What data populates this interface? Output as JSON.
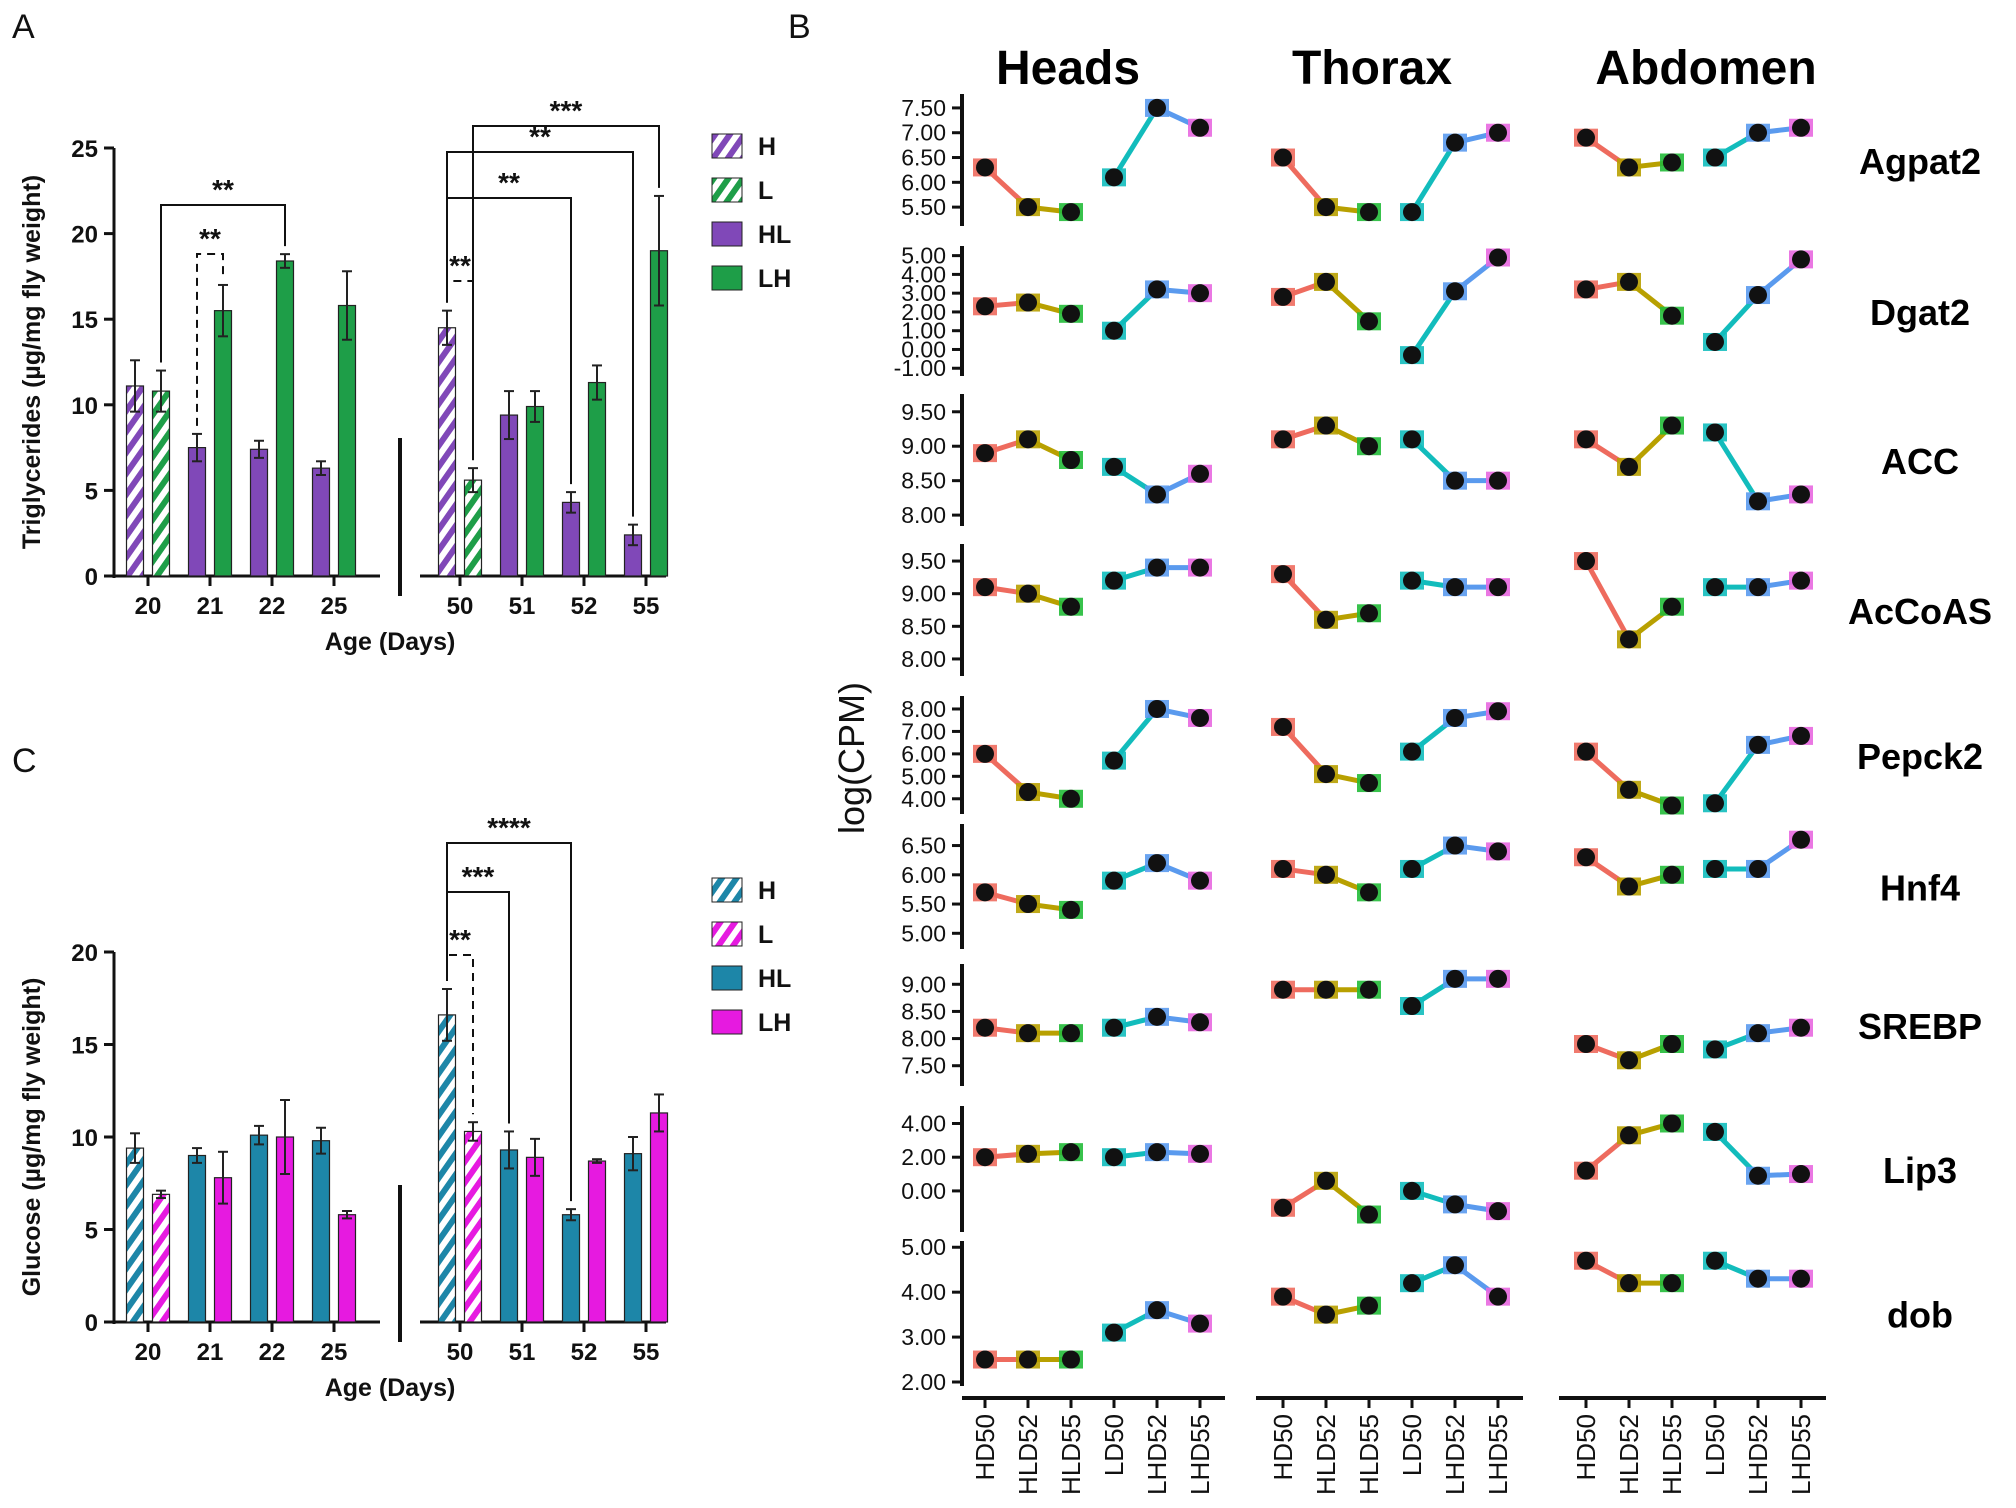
{
  "panels": {
    "A": "A",
    "B": "B",
    "C": "C"
  },
  "colors": {
    "purple": "#8048B8",
    "green": "#1E9E48",
    "teal": "#1D86A8",
    "magenta": "#E61AE0",
    "red": "#EE6B5E",
    "olive": "#B8A000",
    "lgreen": "#22BB38",
    "cyan": "#12BCBC",
    "blue": "#5A9AEE",
    "pink": "#E868E0"
  },
  "chart_data": [
    {
      "type": "bar",
      "panel": "A",
      "ylabel": "Triglycerides (µg/mg fly weight)",
      "xlabel": "Age (Days)",
      "ylim": [
        0,
        25
      ],
      "yticks": [
        "0",
        "5",
        "10",
        "15",
        "20",
        "25"
      ],
      "categories": [
        "20",
        "21",
        "22",
        "25",
        "50",
        "51",
        "52",
        "55"
      ],
      "legend": [
        "H",
        "L",
        "HL",
        "LH"
      ],
      "bars": [
        {
          "cat": "20",
          "series": "H",
          "value": 11.1,
          "err": 1.5
        },
        {
          "cat": "20",
          "series": "L",
          "value": 10.8,
          "err": 1.2
        },
        {
          "cat": "21",
          "series": "HL",
          "value": 7.5,
          "err": 0.8
        },
        {
          "cat": "21",
          "series": "LH",
          "value": 15.5,
          "err": 1.5
        },
        {
          "cat": "22",
          "series": "HL",
          "value": 7.4,
          "err": 0.5
        },
        {
          "cat": "22",
          "series": "LH",
          "value": 18.4,
          "err": 0.4
        },
        {
          "cat": "25",
          "series": "HL",
          "value": 6.3,
          "err": 0.4
        },
        {
          "cat": "25",
          "series": "LH",
          "value": 15.8,
          "err": 2.0
        },
        {
          "cat": "50",
          "series": "H",
          "value": 14.5,
          "err": 1.0
        },
        {
          "cat": "50",
          "series": "L",
          "value": 5.6,
          "err": 0.7
        },
        {
          "cat": "51",
          "series": "HL",
          "value": 9.4,
          "err": 1.4
        },
        {
          "cat": "51",
          "series": "LH",
          "value": 9.9,
          "err": 0.9
        },
        {
          "cat": "52",
          "series": "HL",
          "value": 4.3,
          "err": 0.6
        },
        {
          "cat": "52",
          "series": "LH",
          "value": 11.3,
          "err": 1.0
        },
        {
          "cat": "55",
          "series": "HL",
          "value": 2.4,
          "err": 0.6
        },
        {
          "cat": "55",
          "series": "LH",
          "value": 19.0,
          "err": 3.2
        }
      ],
      "brackets": [
        {
          "from": "20-L",
          "to": "22-LH",
          "label": "**",
          "dashed": false
        },
        {
          "from": "21-HL",
          "to": "21-LH",
          "label": "**",
          "dashed": true
        },
        {
          "from": "50-H",
          "to": "50-L",
          "label": "**",
          "dashed": true
        },
        {
          "from": "50-H",
          "to": "52-HL",
          "label": "**",
          "dashed": false
        },
        {
          "from": "50-H",
          "to": "55-HL",
          "label": "**",
          "dashed": false
        },
        {
          "from": "50-L",
          "to": "55-LH",
          "label": "***",
          "dashed": false
        }
      ]
    },
    {
      "type": "bar",
      "panel": "C",
      "ylabel": "Glucose (µg/mg fly weight)",
      "xlabel": "Age (Days)",
      "ylim": [
        0,
        20
      ],
      "yticks": [
        "0",
        "5",
        "10",
        "15",
        "20"
      ],
      "categories": [
        "20",
        "21",
        "22",
        "25",
        "50",
        "51",
        "52",
        "55"
      ],
      "legend": [
        "H",
        "L",
        "HL",
        "LH"
      ],
      "bars": [
        {
          "cat": "20",
          "series": "H",
          "value": 9.4,
          "err": 0.8
        },
        {
          "cat": "20",
          "series": "L",
          "value": 6.9,
          "err": 0.2
        },
        {
          "cat": "21",
          "series": "HL",
          "value": 9.0,
          "err": 0.4
        },
        {
          "cat": "21",
          "series": "LH",
          "value": 7.8,
          "err": 1.4
        },
        {
          "cat": "22",
          "series": "HL",
          "value": 10.1,
          "err": 0.5
        },
        {
          "cat": "22",
          "series": "LH",
          "value": 10.0,
          "err": 2.0
        },
        {
          "cat": "25",
          "series": "HL",
          "value": 9.8,
          "err": 0.7
        },
        {
          "cat": "25",
          "series": "LH",
          "value": 5.8,
          "err": 0.2
        },
        {
          "cat": "50",
          "series": "H",
          "value": 16.6,
          "err": 1.4
        },
        {
          "cat": "50",
          "series": "L",
          "value": 10.3,
          "err": 0.5
        },
        {
          "cat": "51",
          "series": "HL",
          "value": 9.3,
          "err": 1.0
        },
        {
          "cat": "51",
          "series": "LH",
          "value": 8.9,
          "err": 1.0
        },
        {
          "cat": "52",
          "series": "HL",
          "value": 5.8,
          "err": 0.3
        },
        {
          "cat": "52",
          "series": "LH",
          "value": 8.7,
          "err": 0.1
        },
        {
          "cat": "55",
          "series": "HL",
          "value": 9.1,
          "err": 0.9
        },
        {
          "cat": "55",
          "series": "LH",
          "value": 11.3,
          "err": 1.0
        }
      ],
      "brackets": [
        {
          "from": "50-H",
          "to": "50-L",
          "label": "**",
          "dashed": true
        },
        {
          "from": "50-H",
          "to": "51-HL",
          "label": "***",
          "dashed": false
        },
        {
          "from": "50-H",
          "to": "52-HL",
          "label": "****",
          "dashed": false
        }
      ]
    },
    {
      "type": "line",
      "panel": "B",
      "ylabel": "log(CPM)",
      "columns": [
        "Heads",
        "Thorax",
        "Abdomen"
      ],
      "x": [
        "HD50",
        "HLD52",
        "HLD55",
        "LD50",
        "LHD52",
        "LHD55"
      ],
      "rows": [
        {
          "gene": "Agpat2",
          "yticks": [
            "5.50",
            "6.00",
            "6.50",
            "7.00",
            "7.50"
          ],
          "ylim": [
            5.2,
            7.7
          ],
          "Heads": [
            6.3,
            5.5,
            5.4,
            6.1,
            7.5,
            7.1
          ],
          "Thorax": [
            6.5,
            5.5,
            5.4,
            5.4,
            6.8,
            7.0
          ],
          "Abdomen": [
            6.9,
            6.3,
            6.4,
            6.5,
            7.0,
            7.1
          ]
        },
        {
          "gene": "Dgat2",
          "yticks": [
            "-1.00",
            "0.00",
            "1.00",
            "2.00",
            "3.00",
            "4.00",
            "5.00"
          ],
          "ylim": [
            -1.2,
            5.3
          ],
          "Heads": [
            2.3,
            2.5,
            1.9,
            1.0,
            3.2,
            3.0
          ],
          "Thorax": [
            2.8,
            3.6,
            1.5,
            -0.3,
            3.1,
            4.9
          ],
          "Abdomen": [
            3.2,
            3.6,
            1.8,
            0.4,
            2.9,
            4.8
          ]
        },
        {
          "gene": "ACC",
          "yticks": [
            "8.00",
            "8.50",
            "9.00",
            "9.50"
          ],
          "ylim": [
            7.9,
            9.7
          ],
          "Heads": [
            8.9,
            9.1,
            8.8,
            8.7,
            8.3,
            8.6
          ],
          "Thorax": [
            9.1,
            9.3,
            9.0,
            9.1,
            8.5,
            8.5
          ],
          "Abdomen": [
            9.1,
            8.7,
            9.3,
            9.2,
            8.2,
            8.3
          ]
        },
        {
          "gene": "AcCoAS",
          "yticks": [
            "8.00",
            "8.50",
            "9.00",
            "9.50"
          ],
          "ylim": [
            7.8,
            9.7
          ],
          "Heads": [
            9.1,
            9.0,
            8.8,
            9.2,
            9.4,
            9.4
          ],
          "Thorax": [
            9.3,
            8.6,
            8.7,
            9.2,
            9.1,
            9.1
          ],
          "Abdomen": [
            9.5,
            8.3,
            8.8,
            9.1,
            9.1,
            9.2
          ]
        },
        {
          "gene": "Pepck2",
          "yticks": [
            "4.00",
            "5.00",
            "6.00",
            "7.00",
            "8.00"
          ],
          "ylim": [
            3.5,
            8.4
          ],
          "Heads": [
            6.0,
            4.3,
            4.0,
            5.7,
            8.0,
            7.6
          ],
          "Thorax": [
            7.2,
            5.1,
            4.7,
            6.1,
            7.6,
            7.9
          ],
          "Abdomen": [
            6.1,
            4.4,
            3.7,
            3.8,
            6.4,
            6.8
          ]
        },
        {
          "gene": "Hnf4",
          "yticks": [
            "5.00",
            "5.50",
            "6.00",
            "6.50"
          ],
          "ylim": [
            4.8,
            6.8
          ],
          "Heads": [
            5.7,
            5.5,
            5.4,
            5.9,
            6.2,
            5.9
          ],
          "Thorax": [
            6.1,
            6.0,
            5.7,
            6.1,
            6.5,
            6.4
          ],
          "Abdomen": [
            6.3,
            5.8,
            6.0,
            6.1,
            6.1,
            6.6
          ]
        },
        {
          "gene": "SREBP",
          "yticks": [
            "7.50",
            "8.00",
            "8.50",
            "9.00"
          ],
          "ylim": [
            7.2,
            9.3
          ],
          "Heads": [
            8.2,
            8.1,
            8.1,
            8.2,
            8.4,
            8.3
          ],
          "Thorax": [
            8.9,
            8.9,
            8.9,
            8.6,
            9.1,
            9.1
          ],
          "Abdomen": [
            7.9,
            7.6,
            7.9,
            7.8,
            8.1,
            8.2
          ]
        },
        {
          "gene": "Lip3",
          "yticks": [
            "0.00",
            "2.00",
            "4.00"
          ],
          "ylim": [
            -2.2,
            4.8
          ],
          "Heads": [
            2.0,
            2.2,
            2.3,
            2.0,
            2.3,
            2.2
          ],
          "Thorax": [
            -1.0,
            0.6,
            -1.4,
            0.0,
            -0.8,
            -1.2
          ],
          "Abdomen": [
            1.2,
            3.3,
            4.0,
            3.5,
            0.9,
            1.0
          ]
        },
        {
          "gene": "dob",
          "yticks": [
            "2.00",
            "3.00",
            "4.00",
            "5.00"
          ],
          "ylim": [
            2.0,
            5.05
          ],
          "Heads": [
            2.5,
            2.5,
            2.5,
            3.1,
            3.6,
            3.3
          ],
          "Thorax": [
            3.9,
            3.5,
            3.7,
            4.2,
            4.6,
            3.9
          ],
          "Abdomen": [
            4.7,
            4.2,
            4.2,
            4.7,
            4.3,
            4.3
          ]
        }
      ]
    }
  ]
}
